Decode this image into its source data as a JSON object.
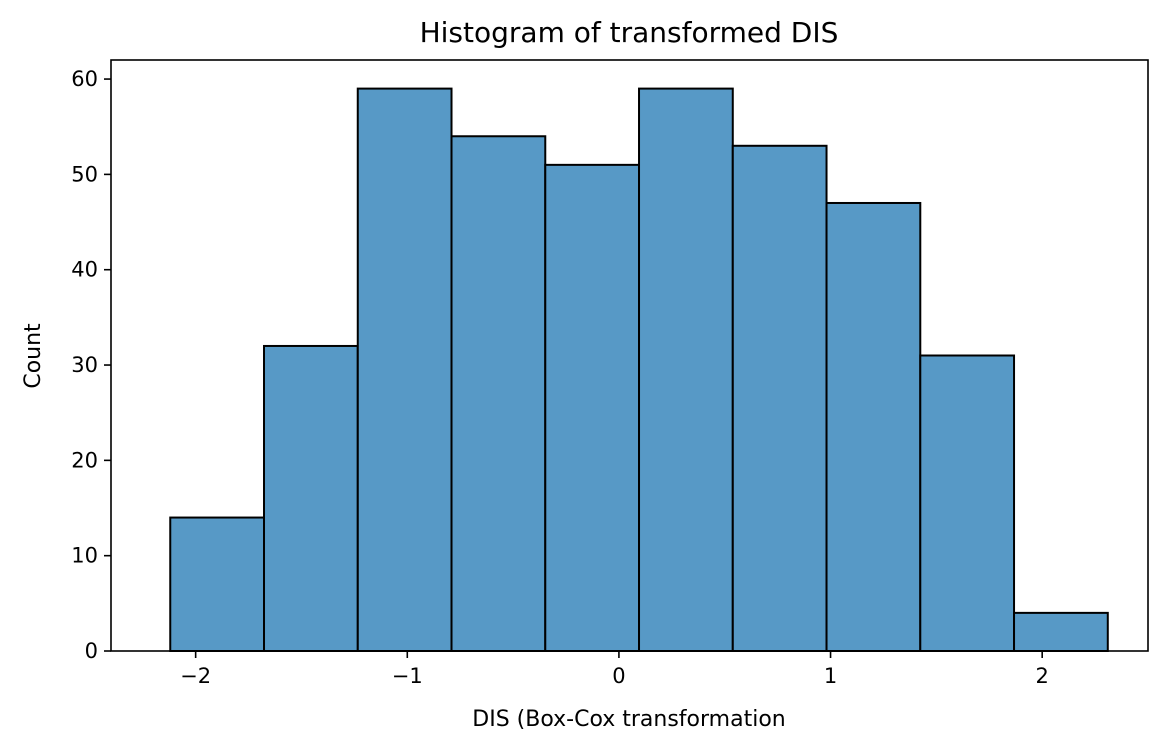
{
  "chart_data": {
    "type": "bar",
    "title": "Histogram of transformed DIS",
    "xlabel": "DIS (Box-Cox transformation",
    "ylabel": "Count",
    "bin_edges": [
      -2.12,
      -1.677,
      -1.234,
      -0.791,
      -0.348,
      0.095,
      0.538,
      0.981,
      1.424,
      1.867,
      2.31
    ],
    "values": [
      14,
      32,
      59,
      54,
      51,
      59,
      53,
      47,
      31,
      4
    ],
    "xlim": [
      -2.4,
      2.5
    ],
    "ylim": [
      0,
      62
    ],
    "xticks": [
      -2,
      -1,
      0,
      1,
      2
    ],
    "xtick_labels": [
      "−2",
      "−1",
      "0",
      "1",
      "2"
    ],
    "yticks": [
      0,
      10,
      20,
      30,
      40,
      50,
      60
    ],
    "ytick_labels": [
      "0",
      "10",
      "20",
      "30",
      "40",
      "50",
      "60"
    ],
    "grid": false,
    "bar_color": "#5799c6",
    "edge_color": "#000000"
  }
}
